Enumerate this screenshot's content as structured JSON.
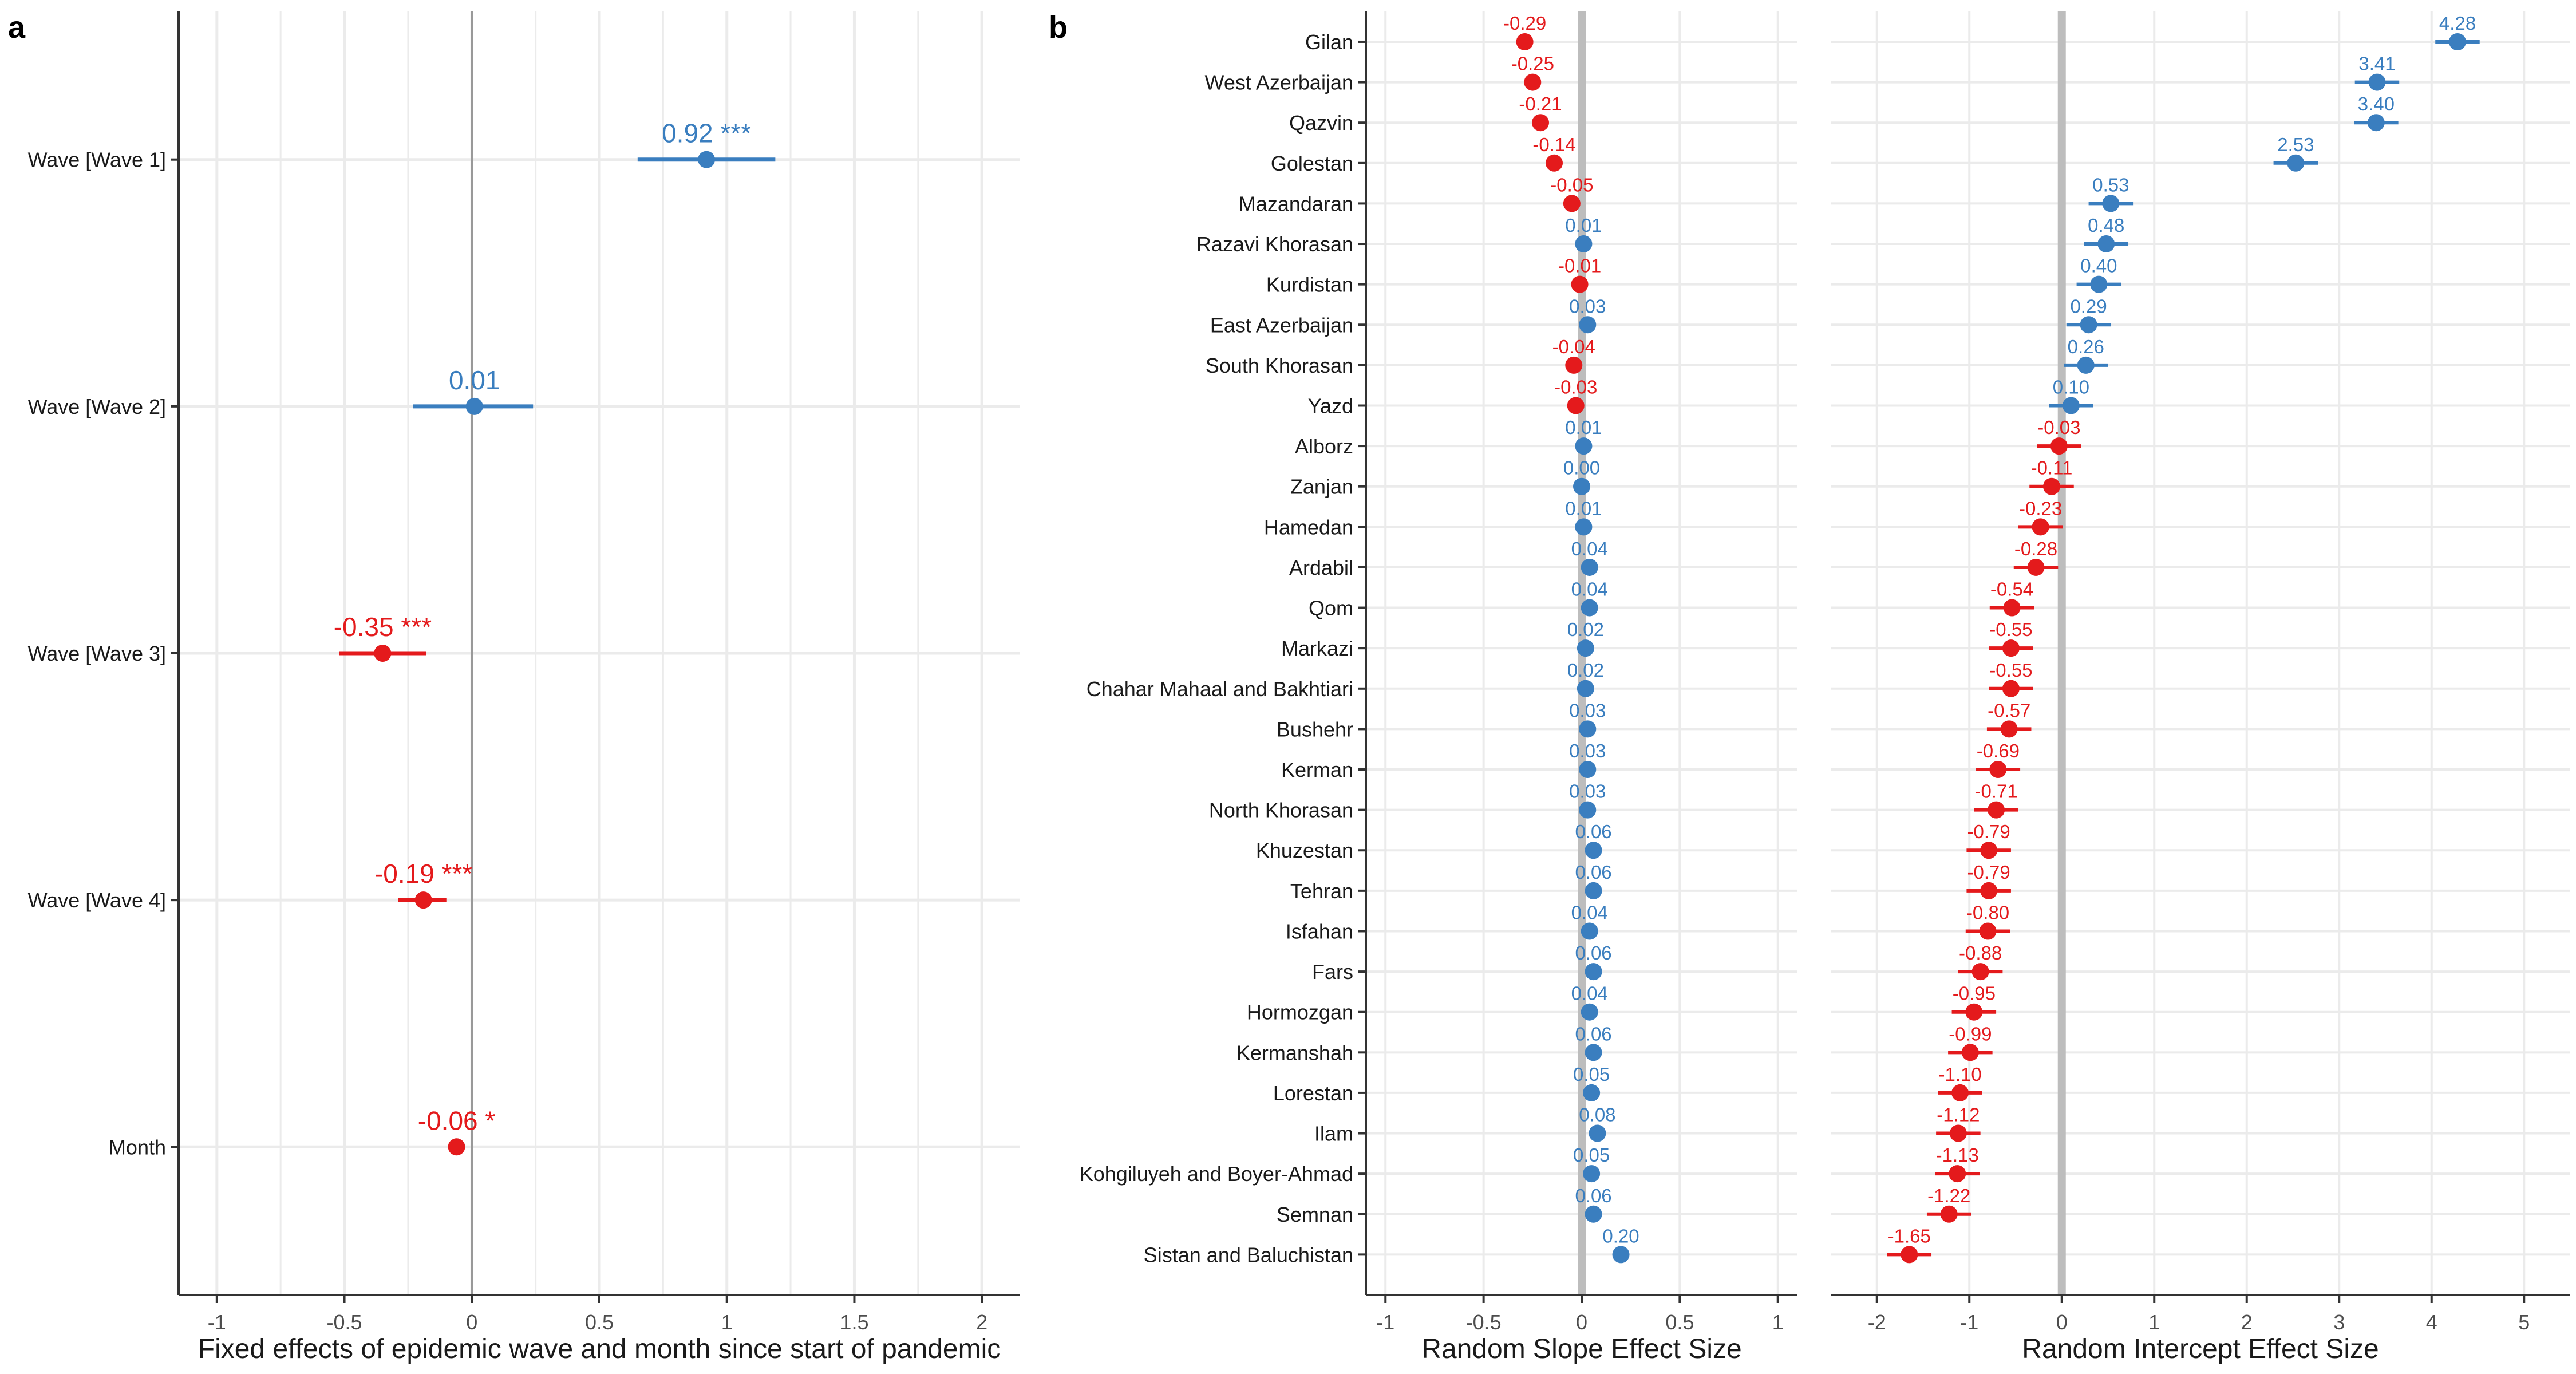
{
  "colors": {
    "positive": "#3A7EBF",
    "negative": "#E41A1C",
    "grid": "#EBEBEB",
    "zero_line": "#BDBDBD",
    "axis": "#333333"
  },
  "chart_data": [
    {
      "panel_label": "a",
      "type": "scatter",
      "subtype": "forest-plot",
      "xlabel": "Fixed effects of epidemic wave and month since start of pandemic",
      "xlim": [
        -1.15,
        2.15
      ],
      "x_ticks": [
        -1,
        -0.5,
        0,
        0.5,
        1,
        1.5,
        2
      ],
      "x_tick_labels": [
        "-1",
        "-0.5",
        "0",
        "0.5",
        "1",
        "1.5",
        "2"
      ],
      "grid": true,
      "points": [
        {
          "term": "Wave [Wave 1]",
          "estimate": 0.92,
          "ci": [
            0.65,
            1.19
          ],
          "label": "0.92 ***"
        },
        {
          "term": "Wave [Wave 2]",
          "estimate": 0.01,
          "ci": [
            -0.23,
            0.24
          ],
          "label": "0.01"
        },
        {
          "term": "Wave [Wave 3]",
          "estimate": -0.35,
          "ci": [
            -0.52,
            -0.18
          ],
          "label": "-0.35 ***"
        },
        {
          "term": "Wave [Wave 4]",
          "estimate": -0.19,
          "ci": [
            -0.29,
            -0.1
          ],
          "label": "-0.19 ***"
        },
        {
          "term": "Month",
          "estimate": -0.06,
          "ci": [
            -0.08,
            -0.04
          ],
          "label": "-0.06 *"
        }
      ]
    },
    {
      "panel_label": "b",
      "type": "scatter",
      "subtype": "forest-plot",
      "xlabel": "Random Slope Effect Size",
      "xlim": [
        -1.1,
        1.1
      ],
      "x_ticks": [
        -1,
        -0.5,
        0,
        0.5,
        1
      ],
      "x_tick_labels": [
        "-1",
        "-0.5",
        "0",
        "0.5",
        "1"
      ],
      "grid": true,
      "categories": [
        "Gilan",
        "West Azerbaijan",
        "Qazvin",
        "Golestan",
        "Mazandaran",
        "Razavi Khorasan",
        "Kurdistan",
        "East Azerbaijan",
        "South Khorasan",
        "Yazd",
        "Alborz",
        "Zanjan",
        "Hamedan",
        "Ardabil",
        "Qom",
        "Markazi",
        "Chahar Mahaal and Bakhtiari",
        "Bushehr",
        "Kerman",
        "North Khorasan",
        "Khuzestan",
        "Tehran",
        "Isfahan",
        "Fars",
        "Hormozgan",
        "Kermanshah",
        "Lorestan",
        "Ilam",
        "Kohgiluyeh and Boyer-Ahmad",
        "Semnan",
        "Sistan and Baluchistan"
      ],
      "values": [
        -0.29,
        -0.25,
        -0.21,
        -0.14,
        -0.05,
        0.01,
        -0.01,
        0.03,
        -0.04,
        -0.03,
        0.01,
        0.0,
        0.01,
        0.04,
        0.04,
        0.02,
        0.02,
        0.03,
        0.03,
        0.03,
        0.06,
        0.06,
        0.04,
        0.06,
        0.04,
        0.06,
        0.05,
        0.08,
        0.05,
        0.06,
        0.2
      ],
      "labels": [
        "-0.29",
        "-0.25",
        "-0.21",
        "-0.14",
        "-0.05",
        "0.01",
        "-0.01",
        "0.03",
        "-0.04",
        "-0.03",
        "0.01",
        "0.00",
        "0.01",
        "0.04",
        "0.04",
        "0.02",
        "0.02",
        "0.03",
        "0.03",
        "0.03",
        "0.06",
        "0.06",
        "0.04",
        "0.06",
        "0.04",
        "0.06",
        "0.05",
        "0.08",
        "0.05",
        "0.06",
        "0.20"
      ]
    },
    {
      "panel_label": "",
      "type": "scatter",
      "subtype": "forest-plot",
      "xlabel": "Random Intercept Effect Size",
      "xlim": [
        -2.5,
        5.5
      ],
      "x_ticks": [
        -2,
        -1,
        0,
        1,
        2,
        3,
        4,
        5
      ],
      "x_tick_labels": [
        "-2",
        "-1",
        "0",
        "1",
        "2",
        "3",
        "4",
        "5"
      ],
      "grid": true,
      "ci_halfwidth": 0.24,
      "categories": [
        "Gilan",
        "West Azerbaijan",
        "Qazvin",
        "Golestan",
        "Mazandaran",
        "Razavi Khorasan",
        "Kurdistan",
        "East Azerbaijan",
        "South Khorasan",
        "Yazd",
        "Alborz",
        "Zanjan",
        "Hamedan",
        "Ardabil",
        "Qom",
        "Markazi",
        "Chahar Mahaal and Bakhtiari",
        "Bushehr",
        "Kerman",
        "North Khorasan",
        "Khuzestan",
        "Tehran",
        "Isfahan",
        "Fars",
        "Hormozgan",
        "Kermanshah",
        "Lorestan",
        "Ilam",
        "Kohgiluyeh and Boyer-Ahmad",
        "Semnan",
        "Sistan and Baluchistan"
      ],
      "values": [
        4.28,
        3.41,
        3.4,
        2.53,
        0.53,
        0.48,
        0.4,
        0.29,
        0.26,
        0.1,
        -0.03,
        -0.11,
        -0.23,
        -0.28,
        -0.54,
        -0.55,
        -0.55,
        -0.57,
        -0.69,
        -0.71,
        -0.79,
        -0.79,
        -0.8,
        -0.88,
        -0.95,
        -0.99,
        -1.1,
        -1.12,
        -1.13,
        -1.22,
        -1.65
      ],
      "labels": [
        "4.28",
        "3.41",
        "3.40",
        "2.53",
        "0.53",
        "0.48",
        "0.40",
        "0.29",
        "0.26",
        "0.10",
        "-0.03",
        "-0.11",
        "-0.23",
        "-0.28",
        "-0.54",
        "-0.55",
        "-0.55",
        "-0.57",
        "-0.69",
        "-0.71",
        "-0.79",
        "-0.79",
        "-0.80",
        "-0.88",
        "-0.95",
        "-0.99",
        "-1.10",
        "-1.12",
        "-1.13",
        "-1.22",
        "-1.65"
      ]
    }
  ]
}
